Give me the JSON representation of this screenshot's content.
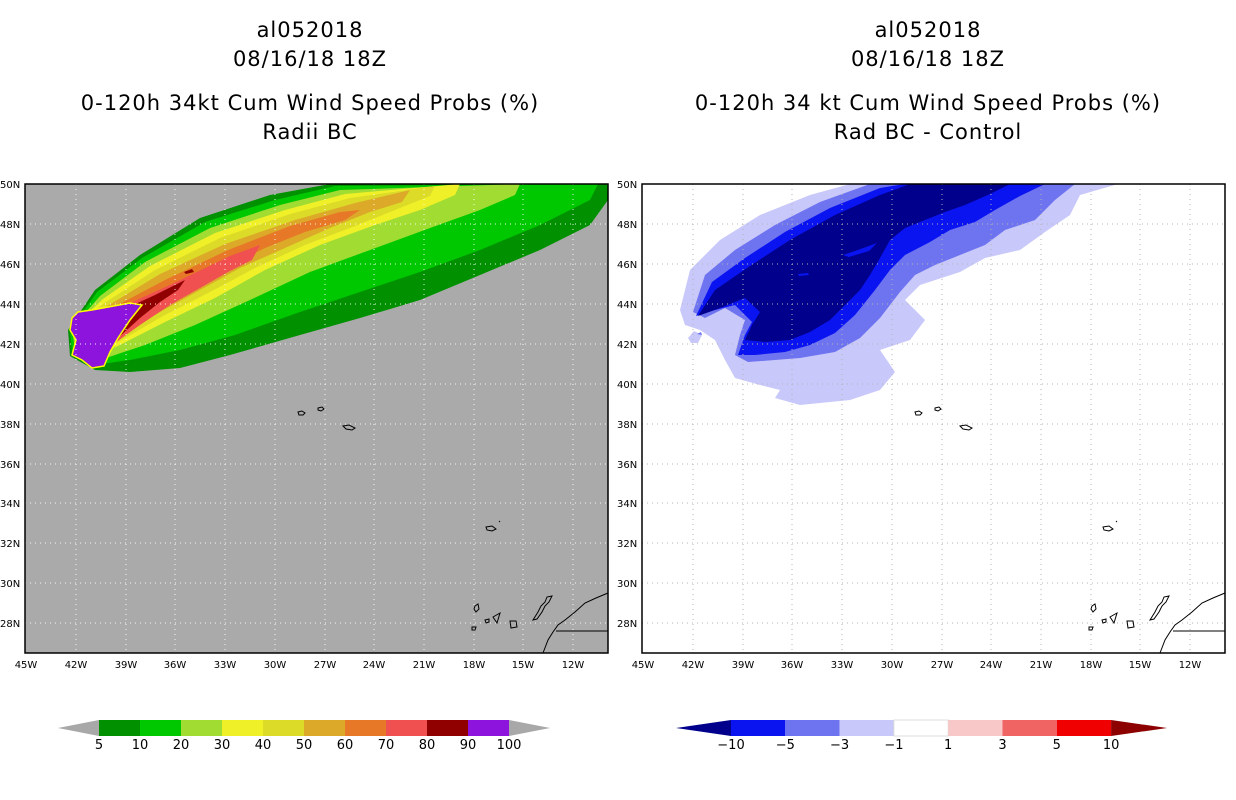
{
  "left_panel": {
    "storm_id": "al052018",
    "datetime": "08/16/18 18Z",
    "product": "0-120h 34kt Cum Wind Speed Probs (%)",
    "subtitle": "Radii BC",
    "colorbar": {
      "labels": [
        "5",
        "10",
        "20",
        "30",
        "40",
        "50",
        "60",
        "70",
        "80",
        "90",
        "100"
      ],
      "colors": [
        "#009000",
        "#00c800",
        "#a0dc32",
        "#f0f028",
        "#dcdc28",
        "#dcaa28",
        "#e67828",
        "#f05050",
        "#900000",
        "#8c14dc"
      ],
      "end_color": "#a8a8a8"
    },
    "background_color": "#aaaaaa"
  },
  "right_panel": {
    "storm_id": "al052018",
    "datetime": "08/16/18 18Z",
    "product": "0-120h 34 kt Cum Wind Speed Probs (%)",
    "subtitle": "Rad BC - Control",
    "colorbar": {
      "labels": [
        "-10",
        "-5",
        "-3",
        "-1",
        "1",
        "3",
        "5",
        "10"
      ],
      "colors": [
        "#00008c",
        "#0a14f0",
        "#6e73f0",
        "#c8c8fa",
        "#ffffff",
        "#f8c8c8",
        "#f06464",
        "#f00000",
        "#8c0000"
      ]
    }
  },
  "map_axes": {
    "lat_labels": [
      "50N",
      "48N",
      "46N",
      "44N",
      "42N",
      "40N",
      "38N",
      "36N",
      "34N",
      "32N",
      "30N",
      "28N"
    ],
    "lon_labels": [
      "45W",
      "42W",
      "39W",
      "36W",
      "33W",
      "30W",
      "27W",
      "24W",
      "21W",
      "18W",
      "15W",
      "12W"
    ]
  }
}
